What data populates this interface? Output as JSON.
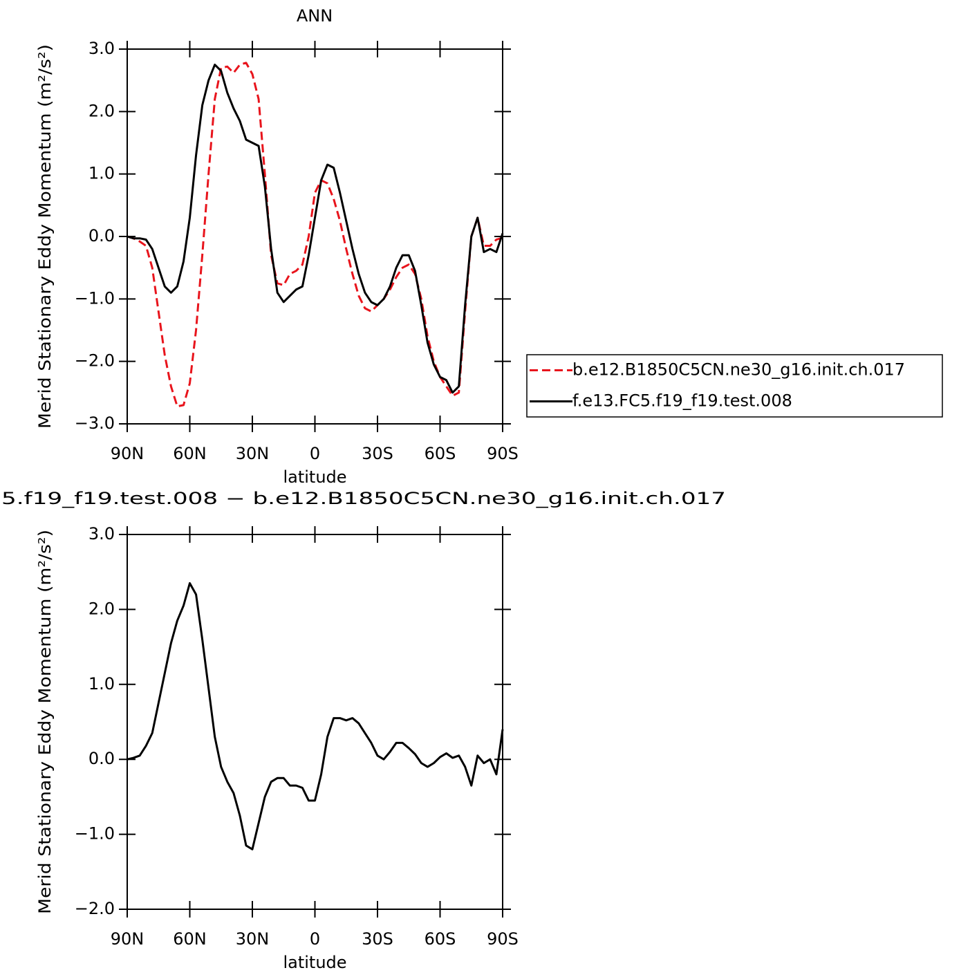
{
  "chart_data": [
    {
      "type": "line",
      "title": "ANN",
      "ylabel": "Merid Stationary Eddy Momentum (m²/s²)",
      "xlabel": "latitude",
      "x": [
        90,
        87,
        84,
        81,
        78,
        75,
        72,
        69,
        66,
        63,
        60,
        57,
        54,
        51,
        48,
        45,
        42,
        39,
        36,
        33,
        30,
        27,
        24,
        21,
        18,
        15,
        12,
        9,
        6,
        3,
        0,
        -3,
        -6,
        -9,
        -12,
        -15,
        -18,
        -21,
        -24,
        -27,
        -30,
        -33,
        -36,
        -39,
        -42,
        -45,
        -48,
        -51,
        -54,
        -57,
        -60,
        -63,
        -66,
        -69,
        -72,
        -75,
        -78,
        -81,
        -84,
        -87,
        -90
      ],
      "xlim": [
        90,
        -90
      ],
      "xticks": [
        {
          "value": 90,
          "label": "90N"
        },
        {
          "value": 60,
          "label": "60N"
        },
        {
          "value": 30,
          "label": "30N"
        },
        0,
        {
          "value": -30,
          "label": "30S"
        },
        {
          "value": -60,
          "label": "60S"
        },
        {
          "value": -90,
          "label": "90S"
        }
      ],
      "ylim": [
        -3,
        3
      ],
      "yticks": [
        {
          "value": -3,
          "label": "−3.0"
        },
        {
          "value": -2,
          "label": "−2.0"
        },
        {
          "value": -1,
          "label": "−1.0"
        },
        {
          "value": 0,
          "label": "0.0"
        },
        {
          "value": 1,
          "label": "1.0"
        },
        {
          "value": 2,
          "label": "2.0"
        },
        {
          "value": 3,
          "label": "3.0"
        }
      ],
      "legend": "right",
      "series": [
        {
          "name": "b.e12.B1850C5CN.ne30_g16.init.ch.017",
          "color": "#e8141c",
          "dash": true,
          "values": [
            0,
            -0.03,
            -0.08,
            -0.15,
            -0.5,
            -1.2,
            -1.9,
            -2.4,
            -2.72,
            -2.7,
            -2.35,
            -1.5,
            -0.3,
            1.0,
            2.2,
            2.7,
            2.72,
            2.62,
            2.75,
            2.78,
            2.6,
            2.2,
            1.0,
            -0.3,
            -0.75,
            -0.78,
            -0.6,
            -0.55,
            -0.45,
            0.0,
            0.7,
            0.9,
            0.85,
            0.6,
            0.25,
            -0.2,
            -0.6,
            -0.95,
            -1.15,
            -1.2,
            -1.1,
            -1.0,
            -0.85,
            -0.65,
            -0.5,
            -0.45,
            -0.6,
            -1.0,
            -1.6,
            -2.0,
            -2.25,
            -2.4,
            -2.55,
            -2.5,
            -1.2,
            0.0,
            0.3,
            -0.15,
            -0.15,
            -0.05,
            -0.02
          ]
        },
        {
          "name": "f.e13.FC5.f19_f19.test.008",
          "color": "#000000",
          "dash": false,
          "values": [
            0,
            -0.03,
            -0.03,
            -0.05,
            -0.2,
            -0.5,
            -0.8,
            -0.9,
            -0.8,
            -0.4,
            0.3,
            1.3,
            2.1,
            2.5,
            2.75,
            2.65,
            2.3,
            2.05,
            1.85,
            1.55,
            1.5,
            1.45,
            0.8,
            -0.2,
            -0.9,
            -1.05,
            -0.95,
            -0.85,
            -0.8,
            -0.3,
            0.3,
            0.9,
            1.15,
            1.1,
            0.7,
            0.25,
            -0.2,
            -0.6,
            -0.9,
            -1.05,
            -1.1,
            -1.0,
            -0.8,
            -0.5,
            -0.3,
            -0.3,
            -0.55,
            -1.1,
            -1.7,
            -2.05,
            -2.25,
            -2.3,
            -2.5,
            -2.4,
            -1.1,
            0.0,
            0.3,
            -0.25,
            -0.2,
            -0.25,
            0.05
          ]
        }
      ]
    },
    {
      "type": "line",
      "title": "5.f19_f19.test.008 − b.e12.B1850C5CN.ne30_g16.init.ch.017",
      "ylabel": "Merid Stationary Eddy Momentum (m²/s²)",
      "xlabel": "latitude",
      "x": [
        90,
        87,
        84,
        81,
        78,
        75,
        72,
        69,
        66,
        63,
        60,
        57,
        54,
        51,
        48,
        45,
        42,
        39,
        36,
        33,
        30,
        27,
        24,
        21,
        18,
        15,
        12,
        9,
        6,
        3,
        0,
        -3,
        -6,
        -9,
        -12,
        -15,
        -18,
        -21,
        -24,
        -27,
        -30,
        -33,
        -36,
        -39,
        -42,
        -45,
        -48,
        -51,
        -54,
        -57,
        -60,
        -63,
        -66,
        -69,
        -72,
        -75,
        -78,
        -81,
        -84,
        -87,
        -90
      ],
      "xlim": [
        90,
        -90
      ],
      "xticks": [
        {
          "value": 90,
          "label": "90N"
        },
        {
          "value": 60,
          "label": "60N"
        },
        {
          "value": 30,
          "label": "30N"
        },
        0,
        {
          "value": -30,
          "label": "30S"
        },
        {
          "value": -60,
          "label": "60S"
        },
        {
          "value": -90,
          "label": "90S"
        }
      ],
      "ylim": [
        -2,
        3
      ],
      "yticks": [
        {
          "value": -2,
          "label": "−2.0"
        },
        {
          "value": -1,
          "label": "−1.0"
        },
        {
          "value": 0,
          "label": "0.0"
        },
        {
          "value": 1,
          "label": "1.0"
        },
        {
          "value": 2,
          "label": "2.0"
        },
        {
          "value": 3,
          "label": "3.0"
        }
      ],
      "series": [
        {
          "color": "#000000",
          "dash": false,
          "values": [
            0,
            0.02,
            0.05,
            0.18,
            0.35,
            0.75,
            1.15,
            1.55,
            1.85,
            2.05,
            2.35,
            2.2,
            1.6,
            0.95,
            0.3,
            -0.1,
            -0.3,
            -0.45,
            -0.75,
            -1.15,
            -1.2,
            -0.85,
            -0.5,
            -0.3,
            -0.25,
            -0.25,
            -0.35,
            -0.35,
            -0.38,
            -0.55,
            -0.55,
            -0.2,
            0.3,
            0.55,
            0.55,
            0.52,
            0.55,
            0.48,
            0.35,
            0.22,
            0.05,
            0.0,
            0.1,
            0.22,
            0.22,
            0.15,
            0.07,
            -0.05,
            -0.1,
            -0.05,
            0.03,
            0.08,
            0.02,
            0.05,
            -0.1,
            -0.35,
            0.05,
            -0.05,
            0.0,
            -0.2,
            0.4
          ]
        }
      ]
    }
  ]
}
